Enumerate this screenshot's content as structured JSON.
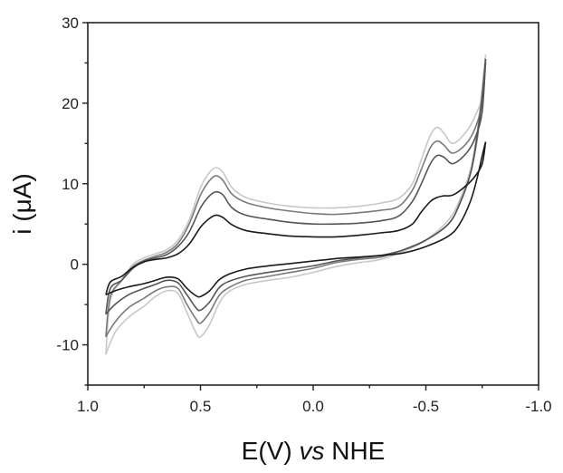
{
  "chart_data": {
    "type": "line",
    "title": "",
    "xlabel_prefix": "E(V) ",
    "xlabel_italic": "vs",
    "xlabel_suffix": " NHE",
    "ylabel": "i (μA)",
    "xlim": [
      1.0,
      -1.0
    ],
    "ylim": [
      -15,
      30
    ],
    "x_reversed": true,
    "grid": false,
    "legend": "none",
    "x_ticks": [
      1.0,
      0.5,
      0.0,
      -0.5,
      -1.0
    ],
    "x_tick_labels": [
      "1.0",
      "0.5",
      "0.0",
      "-0.5",
      "-1.0"
    ],
    "y_ticks": [
      -10,
      0,
      10,
      20,
      30
    ],
    "y_tick_labels": [
      "-10",
      "0",
      "10",
      "20",
      "30"
    ],
    "series": [
      {
        "color": "#c8c8c8",
        "forward": [
          [
            0.92,
            -11.2
          ],
          [
            0.88,
            -8.5
          ],
          [
            0.82,
            -6.6
          ],
          [
            0.75,
            -5.2
          ],
          [
            0.7,
            -4.0
          ],
          [
            0.65,
            -3.3
          ],
          [
            0.6,
            -3.6
          ],
          [
            0.56,
            -6.0
          ],
          [
            0.52,
            -8.5
          ],
          [
            0.5,
            -9.0
          ],
          [
            0.46,
            -7.5
          ],
          [
            0.42,
            -5.0
          ],
          [
            0.38,
            -3.5
          ],
          [
            0.3,
            -2.5
          ],
          [
            0.2,
            -2.0
          ],
          [
            0.1,
            -1.6
          ],
          [
            0.0,
            -1.0
          ],
          [
            -0.1,
            -0.3
          ],
          [
            -0.2,
            0.2
          ],
          [
            -0.3,
            0.6
          ],
          [
            -0.4,
            1.6
          ],
          [
            -0.5,
            3.0
          ],
          [
            -0.6,
            5.5
          ],
          [
            -0.65,
            8.0
          ],
          [
            -0.7,
            12.0
          ],
          [
            -0.73,
            17.0
          ],
          [
            -0.75,
            22.0
          ],
          [
            -0.765,
            26.0
          ]
        ],
        "reverse": [
          [
            -0.765,
            26.0
          ],
          [
            -0.75,
            21.0
          ],
          [
            -0.72,
            18.5
          ],
          [
            -0.68,
            16.5
          ],
          [
            -0.62,
            15.0
          ],
          [
            -0.58,
            16.3
          ],
          [
            -0.55,
            17.0
          ],
          [
            -0.52,
            16.0
          ],
          [
            -0.48,
            13.0
          ],
          [
            -0.44,
            10.0
          ],
          [
            -0.38,
            8.2
          ],
          [
            -0.3,
            7.6
          ],
          [
            -0.2,
            7.2
          ],
          [
            -0.1,
            7.0
          ],
          [
            0.0,
            7.0
          ],
          [
            0.1,
            7.2
          ],
          [
            0.2,
            7.6
          ],
          [
            0.3,
            8.3
          ],
          [
            0.36,
            9.5
          ],
          [
            0.4,
            11.4
          ],
          [
            0.43,
            12.0
          ],
          [
            0.46,
            11.4
          ],
          [
            0.5,
            9.5
          ],
          [
            0.55,
            5.5
          ],
          [
            0.6,
            3.0
          ],
          [
            0.65,
            1.8
          ],
          [
            0.7,
            1.3
          ],
          [
            0.75,
            0.8
          ],
          [
            0.8,
            0.0
          ],
          [
            0.85,
            -2.0
          ],
          [
            0.9,
            -4.5
          ],
          [
            0.92,
            -11.2
          ]
        ]
      },
      {
        "color": "#7a7a7a",
        "forward": [
          [
            0.92,
            -9.0
          ],
          [
            0.88,
            -7.2
          ],
          [
            0.82,
            -5.4
          ],
          [
            0.75,
            -4.2
          ],
          [
            0.7,
            -3.3
          ],
          [
            0.65,
            -2.8
          ],
          [
            0.6,
            -3.0
          ],
          [
            0.56,
            -5.0
          ],
          [
            0.52,
            -6.8
          ],
          [
            0.5,
            -7.3
          ],
          [
            0.46,
            -6.0
          ],
          [
            0.42,
            -4.0
          ],
          [
            0.38,
            -3.0
          ],
          [
            0.3,
            -2.0
          ],
          [
            0.2,
            -1.5
          ],
          [
            0.1,
            -1.0
          ],
          [
            0.0,
            -0.5
          ],
          [
            -0.1,
            0.2
          ],
          [
            -0.2,
            0.6
          ],
          [
            -0.3,
            0.9
          ],
          [
            -0.4,
            1.8
          ],
          [
            -0.5,
            3.0
          ],
          [
            -0.6,
            5.0
          ],
          [
            -0.65,
            7.5
          ],
          [
            -0.7,
            11.5
          ],
          [
            -0.73,
            16.0
          ],
          [
            -0.75,
            21.0
          ],
          [
            -0.765,
            25.0
          ]
        ],
        "reverse": [
          [
            -0.765,
            25.0
          ],
          [
            -0.75,
            20.0
          ],
          [
            -0.72,
            17.0
          ],
          [
            -0.68,
            15.0
          ],
          [
            -0.62,
            13.8
          ],
          [
            -0.58,
            14.8
          ],
          [
            -0.55,
            15.3
          ],
          [
            -0.52,
            14.5
          ],
          [
            -0.48,
            11.8
          ],
          [
            -0.44,
            9.2
          ],
          [
            -0.38,
            7.2
          ],
          [
            -0.3,
            6.7
          ],
          [
            -0.2,
            6.4
          ],
          [
            -0.1,
            6.2
          ],
          [
            0.0,
            6.3
          ],
          [
            0.1,
            6.6
          ],
          [
            0.2,
            7.0
          ],
          [
            0.3,
            7.7
          ],
          [
            0.36,
            8.7
          ],
          [
            0.4,
            10.4
          ],
          [
            0.43,
            11.0
          ],
          [
            0.46,
            10.4
          ],
          [
            0.5,
            8.6
          ],
          [
            0.55,
            5.0
          ],
          [
            0.6,
            2.6
          ],
          [
            0.65,
            1.5
          ],
          [
            0.7,
            1.0
          ],
          [
            0.75,
            0.5
          ],
          [
            0.8,
            -0.3
          ],
          [
            0.85,
            -2.0
          ],
          [
            0.9,
            -4.0
          ],
          [
            0.92,
            -9.0
          ]
        ]
      },
      {
        "color": "#555555",
        "forward": [
          [
            0.92,
            -6.2
          ],
          [
            0.88,
            -5.0
          ],
          [
            0.82,
            -3.8
          ],
          [
            0.75,
            -3.0
          ],
          [
            0.7,
            -2.5
          ],
          [
            0.65,
            -2.0
          ],
          [
            0.6,
            -2.3
          ],
          [
            0.56,
            -3.8
          ],
          [
            0.52,
            -5.4
          ],
          [
            0.5,
            -5.7
          ],
          [
            0.46,
            -4.7
          ],
          [
            0.42,
            -3.0
          ],
          [
            0.38,
            -2.2
          ],
          [
            0.3,
            -1.5
          ],
          [
            0.2,
            -1.0
          ],
          [
            0.1,
            -0.6
          ],
          [
            0.0,
            -0.2
          ],
          [
            -0.1,
            0.4
          ],
          [
            -0.2,
            0.8
          ],
          [
            -0.3,
            1.1
          ],
          [
            -0.4,
            1.8
          ],
          [
            -0.5,
            3.0
          ],
          [
            -0.6,
            5.0
          ],
          [
            -0.65,
            7.5
          ],
          [
            -0.7,
            11.5
          ],
          [
            -0.73,
            16.5
          ],
          [
            -0.75,
            21.0
          ],
          [
            -0.765,
            25.5
          ]
        ],
        "reverse": [
          [
            -0.765,
            25.5
          ],
          [
            -0.75,
            19.0
          ],
          [
            -0.72,
            15.8
          ],
          [
            -0.68,
            13.8
          ],
          [
            -0.62,
            12.5
          ],
          [
            -0.58,
            13.3
          ],
          [
            -0.55,
            13.5
          ],
          [
            -0.52,
            12.5
          ],
          [
            -0.48,
            10.0
          ],
          [
            -0.44,
            7.8
          ],
          [
            -0.38,
            6.0
          ],
          [
            -0.3,
            5.4
          ],
          [
            -0.2,
            5.1
          ],
          [
            -0.1,
            5.0
          ],
          [
            0.0,
            5.0
          ],
          [
            0.1,
            5.2
          ],
          [
            0.2,
            5.6
          ],
          [
            0.3,
            6.1
          ],
          [
            0.36,
            7.0
          ],
          [
            0.4,
            8.6
          ],
          [
            0.43,
            9.0
          ],
          [
            0.46,
            8.5
          ],
          [
            0.5,
            7.0
          ],
          [
            0.55,
            4.0
          ],
          [
            0.6,
            2.2
          ],
          [
            0.65,
            1.2
          ],
          [
            0.7,
            0.8
          ],
          [
            0.75,
            0.4
          ],
          [
            0.8,
            -0.5
          ],
          [
            0.85,
            -2.0
          ],
          [
            0.9,
            -3.0
          ],
          [
            0.92,
            -6.2
          ]
        ]
      },
      {
        "color": "#1a1a1a",
        "forward": [
          [
            0.92,
            -3.8
          ],
          [
            0.88,
            -3.3
          ],
          [
            0.82,
            -2.8
          ],
          [
            0.75,
            -2.4
          ],
          [
            0.7,
            -2.0
          ],
          [
            0.65,
            -1.6
          ],
          [
            0.6,
            -1.8
          ],
          [
            0.56,
            -3.0
          ],
          [
            0.52,
            -3.9
          ],
          [
            0.5,
            -4.0
          ],
          [
            0.46,
            -3.3
          ],
          [
            0.42,
            -2.0
          ],
          [
            0.38,
            -1.3
          ],
          [
            0.3,
            -0.6
          ],
          [
            0.2,
            -0.2
          ],
          [
            0.1,
            0.1
          ],
          [
            0.0,
            0.4
          ],
          [
            -0.1,
            0.7
          ],
          [
            -0.2,
            0.9
          ],
          [
            -0.3,
            1.1
          ],
          [
            -0.4,
            1.4
          ],
          [
            -0.5,
            2.2
          ],
          [
            -0.6,
            3.5
          ],
          [
            -0.65,
            5.0
          ],
          [
            -0.7,
            8.0
          ],
          [
            -0.73,
            11.0
          ],
          [
            -0.75,
            13.5
          ],
          [
            -0.765,
            15.2
          ]
        ],
        "reverse": [
          [
            -0.765,
            15.2
          ],
          [
            -0.75,
            12.5
          ],
          [
            -0.72,
            11.0
          ],
          [
            -0.68,
            9.8
          ],
          [
            -0.62,
            8.6
          ],
          [
            -0.58,
            8.5
          ],
          [
            -0.55,
            8.3
          ],
          [
            -0.52,
            7.8
          ],
          [
            -0.48,
            6.5
          ],
          [
            -0.44,
            5.0
          ],
          [
            -0.38,
            4.2
          ],
          [
            -0.3,
            3.9
          ],
          [
            -0.2,
            3.6
          ],
          [
            -0.1,
            3.4
          ],
          [
            0.0,
            3.4
          ],
          [
            0.1,
            3.5
          ],
          [
            0.2,
            3.8
          ],
          [
            0.3,
            4.2
          ],
          [
            0.36,
            4.9
          ],
          [
            0.4,
            5.8
          ],
          [
            0.43,
            6.1
          ],
          [
            0.46,
            5.7
          ],
          [
            0.5,
            4.6
          ],
          [
            0.55,
            2.5
          ],
          [
            0.6,
            1.3
          ],
          [
            0.65,
            0.8
          ],
          [
            0.7,
            0.6
          ],
          [
            0.75,
            0.3
          ],
          [
            0.8,
            -0.4
          ],
          [
            0.85,
            -1.5
          ],
          [
            0.9,
            -2.2
          ],
          [
            0.92,
            -3.8
          ]
        ]
      }
    ]
  }
}
